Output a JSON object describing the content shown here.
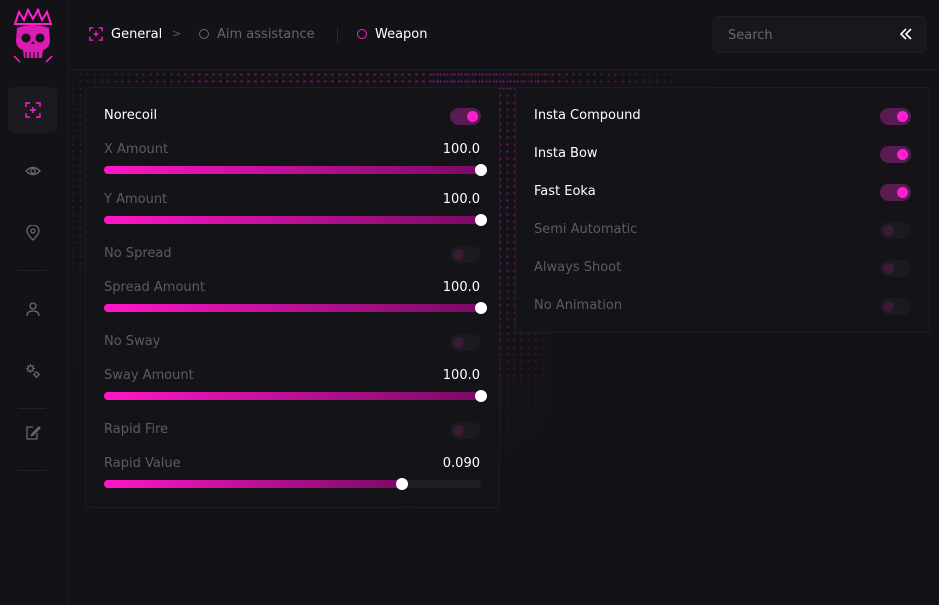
{
  "accent": "#ff1fcf",
  "sidebar": {
    "logo_icon": "crowned-skull-logo",
    "items": [
      {
        "icon": "crosshair-icon",
        "active": true
      },
      {
        "icon": "eye-icon",
        "active": false
      },
      {
        "icon": "location-pin-icon",
        "active": false
      },
      {
        "icon": "user-icon",
        "active": false
      },
      {
        "icon": "gears-icon",
        "active": false
      },
      {
        "icon": "edit-document-icon",
        "active": false
      }
    ]
  },
  "header": {
    "breadcrumb": {
      "general": "General",
      "separator": ">",
      "aim": "Aim assistance",
      "weapon": "Weapon"
    },
    "search": {
      "placeholder": "Search",
      "value": ""
    },
    "collapse_icon": "double-chevron-left-icon"
  },
  "left_panel": {
    "norecoil": {
      "label": "Norecoil",
      "on": true
    },
    "x_amount": {
      "label": "X Amount",
      "value": "100.0",
      "fraction": 1.0
    },
    "y_amount": {
      "label": "Y Amount",
      "value": "100.0",
      "fraction": 1.0
    },
    "no_spread": {
      "label": "No Spread",
      "on": false
    },
    "spread_amount": {
      "label": "Spread Amount",
      "value": "100.0",
      "fraction": 1.0
    },
    "no_sway": {
      "label": "No Sway",
      "on": false
    },
    "sway_amount": {
      "label": "Sway Amount",
      "value": "100.0",
      "fraction": 1.0
    },
    "rapid_fire": {
      "label": "Rapid Fire",
      "on": false
    },
    "rapid_value": {
      "label": "Rapid Value",
      "value": "0.090",
      "fraction": 0.79
    }
  },
  "right_panel": {
    "insta_compound": {
      "label": "Insta Compound",
      "on": true
    },
    "insta_bow": {
      "label": "Insta Bow",
      "on": true
    },
    "fast_eoka": {
      "label": "Fast Eoka",
      "on": true
    },
    "semi_automatic": {
      "label": "Semi Automatic",
      "on": false
    },
    "always_shoot": {
      "label": "Always Shoot",
      "on": false
    },
    "no_animation": {
      "label": "No Animation",
      "on": false
    }
  }
}
